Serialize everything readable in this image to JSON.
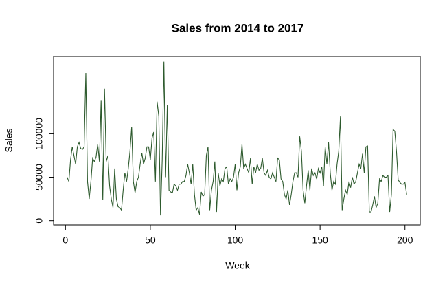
{
  "chart_data": {
    "type": "line",
    "title": "Sales from 2014 to 2017",
    "x_label": "Week",
    "y_label": "Sales",
    "series": [
      {
        "name": "Sales",
        "color": "#2d5a2d",
        "values": [
          50000,
          45000,
          70000,
          85000,
          75000,
          65000,
          85000,
          90000,
          83000,
          82000,
          85000,
          170000,
          45000,
          25000,
          45000,
          72000,
          68000,
          73000,
          88000,
          68000,
          138000,
          24000,
          152000,
          68000,
          75000,
          40000,
          25000,
          15000,
          60000,
          25000,
          16000,
          15000,
          12000,
          35000,
          55000,
          45000,
          60000,
          80000,
          108000,
          45000,
          32000,
          45000,
          50000,
          65000,
          78000,
          65000,
          72000,
          85000,
          85000,
          70000,
          95000,
          102000,
          45000,
          137000,
          120000,
          6000,
          70000,
          183000,
          50000,
          133000,
          35000,
          33000,
          32000,
          42000,
          40000,
          35000,
          42000,
          42000,
          45000,
          45000,
          52000,
          65000,
          55000,
          42000,
          65000,
          30000,
          12000,
          15000,
          7000,
          33000,
          28000,
          30000,
          75000,
          85000,
          12000,
          35000,
          45000,
          68000,
          10000,
          55000,
          40000,
          48000,
          45000,
          60000,
          62000,
          42000,
          48000,
          45000,
          50000,
          65000,
          35000,
          55000,
          62000,
          88000,
          60000,
          65000,
          60000,
          55000,
          72000,
          42000,
          62000,
          55000,
          65000,
          58000,
          60000,
          72000,
          55000,
          52000,
          58000,
          50000,
          48000,
          55000,
          50000,
          45000,
          72000,
          70000,
          48000,
          45000,
          30000,
          25000,
          35000,
          18000,
          30000,
          45000,
          55000,
          55000,
          50000,
          97000,
          80000,
          35000,
          20000,
          40000,
          58000,
          35000,
          60000,
          52000,
          55000,
          48000,
          60000,
          55000,
          62000,
          40000,
          85000,
          65000,
          90000,
          55000,
          35000,
          45000,
          42000,
          65000,
          80000,
          120000,
          12000,
          25000,
          35000,
          30000,
          45000,
          38000,
          50000,
          42000,
          45000,
          55000,
          65000,
          60000,
          77000,
          55000,
          85000,
          86000,
          10000,
          10000,
          18000,
          28000,
          15000,
          20000,
          48000,
          45000,
          52000,
          50000,
          50000,
          52000,
          10000,
          30000,
          105000,
          103000,
          80000,
          47000,
          44000,
          42000,
          42000,
          44000,
          30000
        ]
      }
    ],
    "xlim": [
      -7,
      209
    ],
    "xticks": [
      0,
      50,
      100,
      150,
      200
    ],
    "ylim": [
      -5000,
      189000
    ],
    "yticks": [
      0,
      50000,
      100000
    ]
  }
}
